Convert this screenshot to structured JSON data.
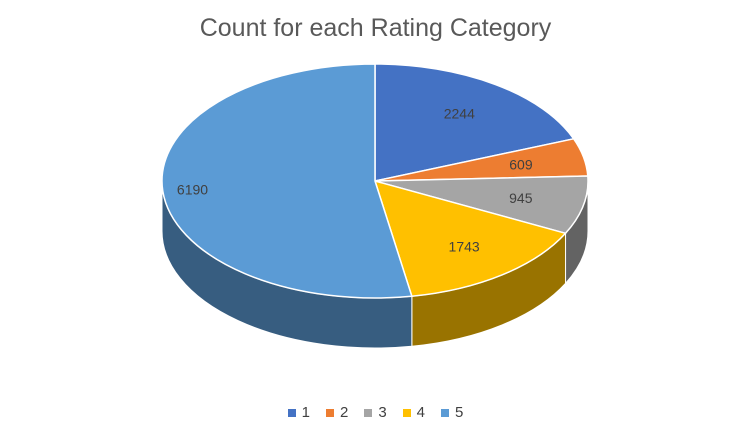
{
  "chart_data": {
    "type": "pie",
    "title": "Count for each Rating Category",
    "categories": [
      "1",
      "2",
      "3",
      "4",
      "5"
    ],
    "values": [
      2244,
      609,
      945,
      1743,
      6190
    ],
    "colors": [
      "#4472C4",
      "#ED7D31",
      "#A5A5A5",
      "#FFC000",
      "#5B9BD5"
    ],
    "style": "3d",
    "legend": "bottom",
    "data_labels": true
  }
}
